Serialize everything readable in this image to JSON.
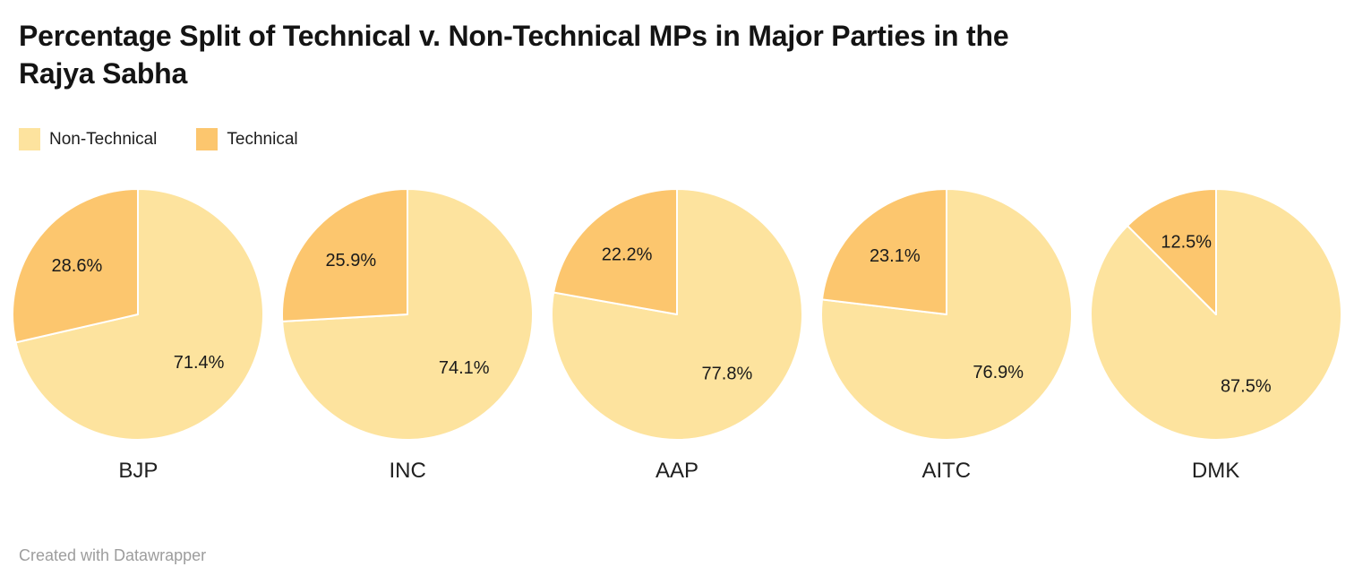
{
  "title": "Percentage Split of Technical v. Non-Technical MPs in Major Parties in the Rajya Sabha",
  "title_lines": [
    "Percentage Split of Technical v. Non-Technical MPs in Major Parties in the",
    "Rajya Sabha"
  ],
  "legend": {
    "items": [
      {
        "label": "Non-Technical",
        "color": "#FDE39E"
      },
      {
        "label": "Technical",
        "color": "#FCC66E"
      }
    ]
  },
  "footer": {
    "text": "Created with Datawrapper"
  },
  "chart_data": {
    "type": "pie",
    "title": "Percentage Split of Technical v. Non-Technical MPs in Major Parties in the Rajya Sabha",
    "legend_position": "top-left",
    "legend_entries": [
      "Non-Technical",
      "Technical"
    ],
    "colors": {
      "Non-Technical": "#FDE39E",
      "Technical": "#FCC66E"
    },
    "start_angle_deg": 0,
    "direction": "clockwise",
    "slice_order": [
      "Non-Technical",
      "Technical"
    ],
    "pies": [
      {
        "category": "BJP",
        "non_technical": 71.4,
        "technical": 28.6,
        "non_technical_label": "71.4%",
        "technical_label": "28.6%"
      },
      {
        "category": "INC",
        "non_technical": 74.1,
        "technical": 25.9,
        "non_technical_label": "74.1%",
        "technical_label": "25.9%"
      },
      {
        "category": "AAP",
        "non_technical": 77.8,
        "technical": 22.2,
        "non_technical_label": "77.8%",
        "technical_label": "22.2%"
      },
      {
        "category": "AITC",
        "non_technical": 76.9,
        "technical": 23.1,
        "non_technical_label": "76.9%",
        "technical_label": "23.1%"
      },
      {
        "category": "DMK",
        "non_technical": 87.5,
        "technical": 12.5,
        "non_technical_label": "87.5%",
        "technical_label": "12.5%"
      }
    ]
  }
}
